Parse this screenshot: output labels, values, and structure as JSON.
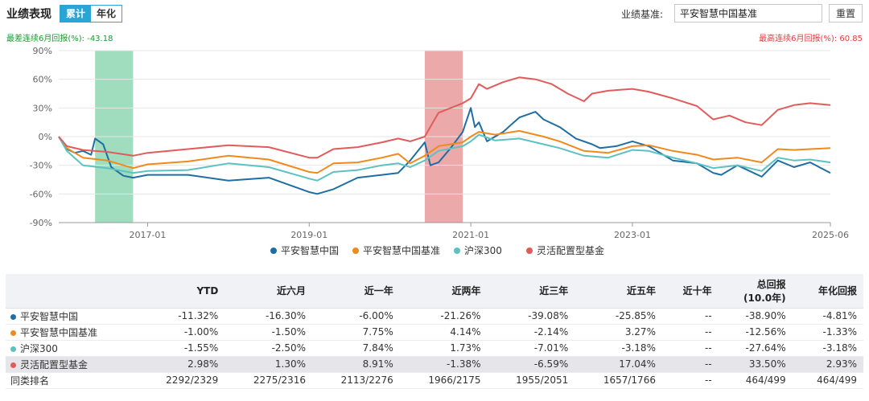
{
  "header": {
    "title": "业绩表现",
    "tabs": [
      "累计",
      "年化"
    ],
    "benchmark_label": "业绩基准:",
    "benchmark_value": "平安智慧中国基准",
    "reset_label": "重置"
  },
  "drawdown": {
    "worst": "最差连续6月回报(%): -43.18",
    "best": "最高连续6月回报(%): 60.85"
  },
  "chart_data": {
    "type": "line",
    "x_start": 2015.9,
    "x_end": 2025.45,
    "x_ticks": [
      {
        "x": 2017.0,
        "label": "2017-01"
      },
      {
        "x": 2019.0,
        "label": "2019-01"
      },
      {
        "x": 2021.0,
        "label": "2021-01"
      },
      {
        "x": 2023.0,
        "label": "2023-01"
      },
      {
        "x": 2025.45,
        "label": "2025-06"
      }
    ],
    "ylim": [
      -90,
      90
    ],
    "y_ticks": [
      90,
      60,
      30,
      0,
      -30,
      -60,
      -90
    ],
    "y_tick_labels": [
      "90%",
      "60%",
      "30%",
      "0%",
      "-30%",
      "-60%",
      "-90%"
    ],
    "highlights": [
      {
        "x0": 2016.35,
        "x1": 2016.82,
        "color": "#8fd6b3",
        "meaning": "worst 6 months"
      },
      {
        "x0": 2020.43,
        "x1": 2020.9,
        "color": "#e79a9a",
        "meaning": "best 6 months"
      }
    ],
    "series": [
      {
        "name": "平安智慧中国",
        "color": "#1f6ea3",
        "points": [
          [
            2015.9,
            0
          ],
          [
            2016.0,
            -13
          ],
          [
            2016.1,
            -17
          ],
          [
            2016.2,
            -15
          ],
          [
            2016.3,
            -19
          ],
          [
            2016.35,
            -2
          ],
          [
            2016.45,
            -8
          ],
          [
            2016.55,
            -32
          ],
          [
            2016.7,
            -41
          ],
          [
            2016.82,
            -43
          ],
          [
            2017.0,
            -40
          ],
          [
            2017.5,
            -40
          ],
          [
            2018.0,
            -46
          ],
          [
            2018.5,
            -43
          ],
          [
            2019.0,
            -58
          ],
          [
            2019.1,
            -60
          ],
          [
            2019.3,
            -55
          ],
          [
            2019.6,
            -43
          ],
          [
            2019.9,
            -40
          ],
          [
            2020.1,
            -38
          ],
          [
            2020.25,
            -25
          ],
          [
            2020.43,
            -6
          ],
          [
            2020.5,
            -30
          ],
          [
            2020.6,
            -27
          ],
          [
            2020.75,
            -12
          ],
          [
            2020.9,
            5
          ],
          [
            2021.0,
            30
          ],
          [
            2021.05,
            10
          ],
          [
            2021.1,
            15
          ],
          [
            2021.2,
            -5
          ],
          [
            2021.4,
            5
          ],
          [
            2021.6,
            20
          ],
          [
            2021.8,
            26
          ],
          [
            2021.9,
            18
          ],
          [
            2022.1,
            10
          ],
          [
            2022.3,
            -2
          ],
          [
            2022.5,
            -8
          ],
          [
            2022.6,
            -12
          ],
          [
            2022.8,
            -10
          ],
          [
            2023.0,
            -5
          ],
          [
            2023.2,
            -10
          ],
          [
            2023.5,
            -25
          ],
          [
            2023.8,
            -28
          ],
          [
            2024.0,
            -38
          ],
          [
            2024.1,
            -40
          ],
          [
            2024.3,
            -30
          ],
          [
            2024.6,
            -42
          ],
          [
            2024.8,
            -25
          ],
          [
            2025.0,
            -32
          ],
          [
            2025.2,
            -27
          ],
          [
            2025.45,
            -38
          ]
        ]
      },
      {
        "name": "平安智慧中国基准",
        "color": "#f08a1c",
        "points": [
          [
            2015.9,
            0
          ],
          [
            2016.0,
            -12
          ],
          [
            2016.2,
            -22
          ],
          [
            2016.5,
            -25
          ],
          [
            2016.82,
            -33
          ],
          [
            2017.0,
            -29
          ],
          [
            2017.5,
            -26
          ],
          [
            2018.0,
            -20
          ],
          [
            2018.5,
            -24
          ],
          [
            2019.0,
            -37
          ],
          [
            2019.1,
            -38
          ],
          [
            2019.3,
            -28
          ],
          [
            2019.6,
            -27
          ],
          [
            2019.9,
            -22
          ],
          [
            2020.1,
            -18
          ],
          [
            2020.25,
            -28
          ],
          [
            2020.43,
            -20
          ],
          [
            2020.6,
            -10
          ],
          [
            2020.9,
            -6
          ],
          [
            2021.0,
            0
          ],
          [
            2021.1,
            5
          ],
          [
            2021.3,
            2
          ],
          [
            2021.6,
            6
          ],
          [
            2021.9,
            0
          ],
          [
            2022.1,
            -5
          ],
          [
            2022.4,
            -15
          ],
          [
            2022.7,
            -17
          ],
          [
            2023.0,
            -10
          ],
          [
            2023.2,
            -9
          ],
          [
            2023.5,
            -15
          ],
          [
            2023.8,
            -19
          ],
          [
            2024.0,
            -24
          ],
          [
            2024.3,
            -22
          ],
          [
            2024.6,
            -27
          ],
          [
            2024.8,
            -13
          ],
          [
            2025.0,
            -14
          ],
          [
            2025.2,
            -13
          ],
          [
            2025.45,
            -12
          ]
        ]
      },
      {
        "name": "沪深300",
        "color": "#5bc2c1",
        "points": [
          [
            2015.9,
            0
          ],
          [
            2016.0,
            -15
          ],
          [
            2016.2,
            -30
          ],
          [
            2016.5,
            -33
          ],
          [
            2016.82,
            -38
          ],
          [
            2017.0,
            -36
          ],
          [
            2017.5,
            -35
          ],
          [
            2018.0,
            -28
          ],
          [
            2018.5,
            -32
          ],
          [
            2019.0,
            -44
          ],
          [
            2019.1,
            -46
          ],
          [
            2019.3,
            -37
          ],
          [
            2019.6,
            -35
          ],
          [
            2019.9,
            -30
          ],
          [
            2020.1,
            -28
          ],
          [
            2020.25,
            -32
          ],
          [
            2020.43,
            -25
          ],
          [
            2020.6,
            -15
          ],
          [
            2020.9,
            -10
          ],
          [
            2021.0,
            -5
          ],
          [
            2021.1,
            2
          ],
          [
            2021.3,
            -4
          ],
          [
            2021.6,
            -2
          ],
          [
            2021.9,
            -8
          ],
          [
            2022.1,
            -12
          ],
          [
            2022.4,
            -20
          ],
          [
            2022.7,
            -22
          ],
          [
            2023.0,
            -14
          ],
          [
            2023.2,
            -15
          ],
          [
            2023.5,
            -22
          ],
          [
            2023.8,
            -28
          ],
          [
            2024.0,
            -33
          ],
          [
            2024.3,
            -30
          ],
          [
            2024.6,
            -36
          ],
          [
            2024.8,
            -22
          ],
          [
            2025.0,
            -25
          ],
          [
            2025.2,
            -24
          ],
          [
            2025.45,
            -27
          ]
        ]
      },
      {
        "name": "灵活配置型基金",
        "color": "#e25b5b",
        "points": [
          [
            2015.9,
            0
          ],
          [
            2016.0,
            -10
          ],
          [
            2016.2,
            -14
          ],
          [
            2016.5,
            -16
          ],
          [
            2016.82,
            -20
          ],
          [
            2017.0,
            -17
          ],
          [
            2017.5,
            -13
          ],
          [
            2018.0,
            -9
          ],
          [
            2018.5,
            -11
          ],
          [
            2019.0,
            -22
          ],
          [
            2019.1,
            -22
          ],
          [
            2019.3,
            -13
          ],
          [
            2019.6,
            -11
          ],
          [
            2019.9,
            -6
          ],
          [
            2020.1,
            -2
          ],
          [
            2020.25,
            -5
          ],
          [
            2020.43,
            0
          ],
          [
            2020.6,
            25
          ],
          [
            2020.9,
            35
          ],
          [
            2021.0,
            40
          ],
          [
            2021.1,
            55
          ],
          [
            2021.2,
            50
          ],
          [
            2021.4,
            57
          ],
          [
            2021.6,
            62
          ],
          [
            2021.8,
            60
          ],
          [
            2022.0,
            55
          ],
          [
            2022.2,
            45
          ],
          [
            2022.4,
            37
          ],
          [
            2022.5,
            45
          ],
          [
            2022.7,
            48
          ],
          [
            2023.0,
            50
          ],
          [
            2023.2,
            47
          ],
          [
            2023.5,
            40
          ],
          [
            2023.8,
            32
          ],
          [
            2024.0,
            18
          ],
          [
            2024.2,
            22
          ],
          [
            2024.4,
            15
          ],
          [
            2024.6,
            12
          ],
          [
            2024.8,
            28
          ],
          [
            2025.0,
            33
          ],
          [
            2025.2,
            35
          ],
          [
            2025.45,
            33
          ]
        ]
      }
    ]
  },
  "table": {
    "headers": [
      "",
      "YTD",
      "近六月",
      "近一年",
      "近两年",
      "近三年",
      "近五年",
      "近十年",
      "总回报 (10.0年)",
      "年化回报"
    ],
    "rows": [
      {
        "name": "平安智慧中国",
        "color": "#1f6ea3",
        "highlight": false,
        "cells": [
          "-11.32%",
          "-16.30%",
          "-6.00%",
          "-21.26%",
          "-39.08%",
          "-25.85%",
          "--",
          "-38.90%",
          "-4.81%"
        ]
      },
      {
        "name": "平安智慧中国基准",
        "color": "#f08a1c",
        "highlight": false,
        "cells": [
          "-1.00%",
          "-1.50%",
          "7.75%",
          "4.14%",
          "-2.14%",
          "3.27%",
          "--",
          "-12.56%",
          "-1.33%"
        ]
      },
      {
        "name": "沪深300",
        "color": "#5bc2c1",
        "highlight": false,
        "cells": [
          "-1.55%",
          "-2.50%",
          "7.84%",
          "1.73%",
          "-7.01%",
          "-3.18%",
          "--",
          "-27.64%",
          "-3.18%"
        ]
      },
      {
        "name": "灵活配置型基金",
        "color": "#e25b5b",
        "highlight": true,
        "cells": [
          "2.98%",
          "1.30%",
          "8.91%",
          "-1.38%",
          "-6.59%",
          "17.04%",
          "--",
          "33.50%",
          "2.93%"
        ]
      },
      {
        "name": "同类排名",
        "color": "",
        "highlight": false,
        "cells": [
          "2292/2329",
          "2275/2316",
          "2113/2276",
          "1966/2175",
          "1955/2051",
          "1657/1766",
          "--",
          "464/499",
          "464/499"
        ]
      }
    ]
  }
}
